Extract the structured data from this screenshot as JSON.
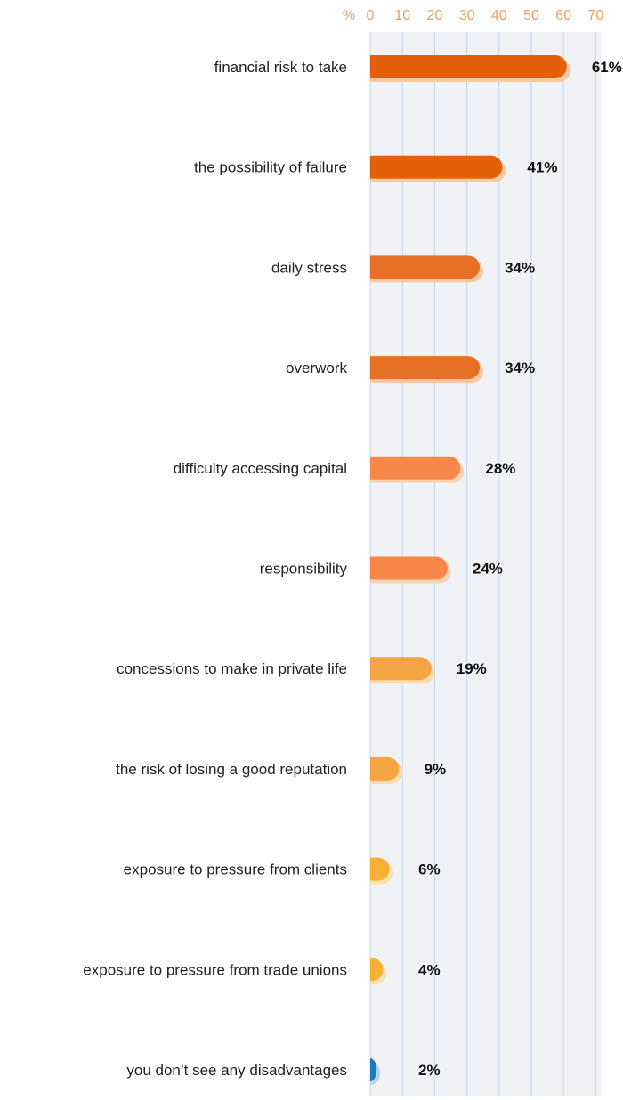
{
  "chart_data": {
    "type": "bar",
    "orientation": "horizontal",
    "xlim": [
      0,
      70
    ],
    "x_unit_label": "%",
    "x_ticks": [
      0,
      10,
      20,
      30,
      40,
      50,
      60,
      70
    ],
    "x_tick_labels": [
      "0",
      "10",
      "20",
      "30",
      "40",
      "50",
      "60",
      "70"
    ],
    "categories": [
      "financial risk to take",
      "the possibility of failure",
      "daily stress",
      "overwork",
      "difficulty accessing capital",
      "responsibility",
      "concessions to make in private life",
      "the risk of losing a good reputation",
      "exposure to pressure from clients",
      "exposure to pressure from trade unions",
      "you don’t see any disadvantages"
    ],
    "values": [
      61,
      41,
      34,
      34,
      28,
      24,
      19,
      9,
      6,
      4,
      2
    ],
    "value_labels": [
      "61%",
      "41%",
      "34%",
      "34%",
      "28%",
      "24%",
      "19%",
      "9%",
      "6%",
      "4%",
      "2%"
    ],
    "bar_colors": [
      "#e35f0a",
      "#e35f0a",
      "#e57026",
      "#e57026",
      "#f7884a",
      "#f7884a",
      "#f5a443",
      "#f5a443",
      "#f7b236",
      "#f7b236",
      "#1a7bbf"
    ],
    "shadow_colors": [
      "#f6c9a2",
      "#f6c9a2",
      "#f6c9a2",
      "#f6c9a2",
      "#fbd3b5",
      "#fbd3b5",
      "#fbdcb0",
      "#fbdcb0",
      "#fbe2b0",
      "#fbe2b0",
      "#b5d3ea"
    ],
    "grid": true,
    "plot_background": "#f0f2f5",
    "grid_color": "#c5dae9",
    "tick_color": "#f39a5b",
    "legend": "none"
  }
}
